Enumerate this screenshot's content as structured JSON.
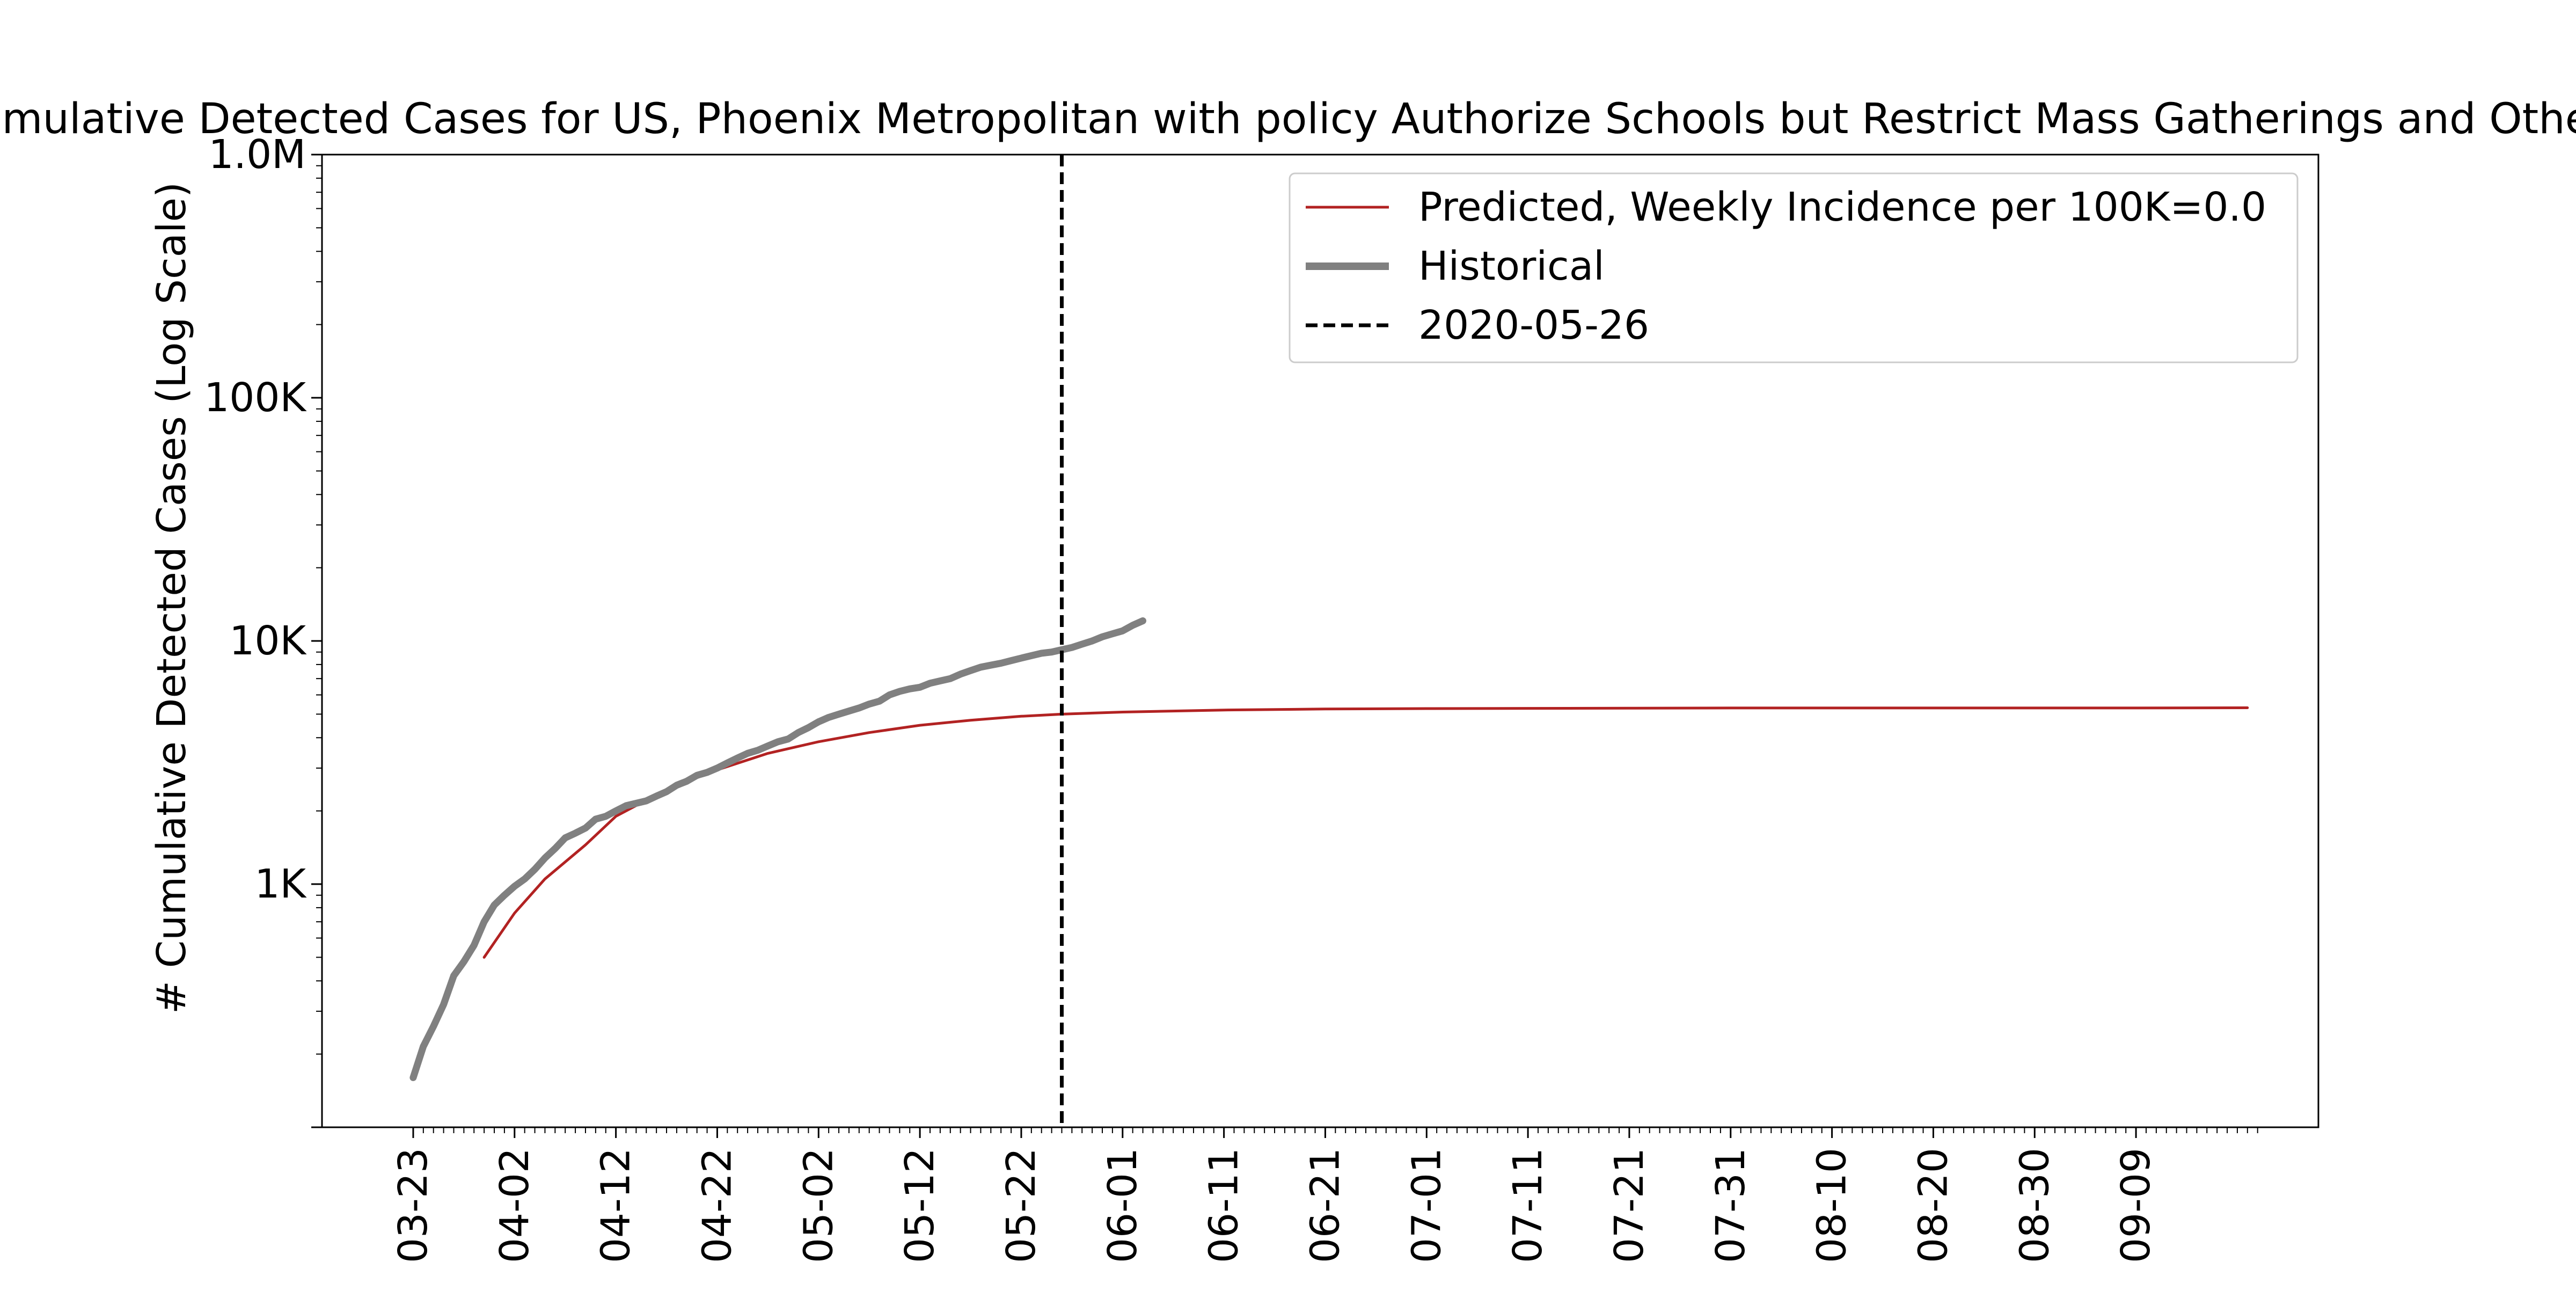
{
  "chart_data": {
    "type": "line",
    "title": "Cumulative Detected Cases for US, Phoenix Metropolitan with policy Authorize Schools but Restrict Mass Gatherings and Others",
    "xlabel": "",
    "ylabel": "# Cumulative Detected Cases (Log Scale)",
    "y_scale": "log",
    "ylim": [
      100,
      1000000
    ],
    "xlim": [
      "2020-03-14",
      "2020-09-27"
    ],
    "y_ticks": [
      {
        "value": 1000,
        "label": "1K"
      },
      {
        "value": 10000,
        "label": "10K"
      },
      {
        "value": 100000,
        "label": "100K"
      },
      {
        "value": 1000000,
        "label": "1.0M"
      }
    ],
    "x_tick_labels": [
      "03-23",
      "04-02",
      "04-12",
      "04-22",
      "05-02",
      "05-12",
      "05-22",
      "06-01",
      "06-11",
      "06-21",
      "07-01",
      "07-11",
      "07-21",
      "07-31",
      "08-10",
      "08-20",
      "08-30",
      "09-09"
    ],
    "x_tick_dates": [
      "2020-03-23",
      "2020-04-02",
      "2020-04-12",
      "2020-04-22",
      "2020-05-02",
      "2020-05-12",
      "2020-05-22",
      "2020-06-01",
      "2020-06-11",
      "2020-06-21",
      "2020-07-01",
      "2020-07-11",
      "2020-07-21",
      "2020-07-31",
      "2020-08-10",
      "2020-08-20",
      "2020-08-30",
      "2020-09-09"
    ],
    "minor_tick_range": [
      "2020-03-23",
      "2020-09-21"
    ],
    "grid": false,
    "legend": {
      "placement": "top-right"
    },
    "series": [
      {
        "name": "Predicted, Weekly Incidence per 100K=0.0",
        "color": "#b22222",
        "style": "solid",
        "points": [
          [
            "2020-03-30",
            500
          ],
          [
            "2020-04-02",
            760
          ],
          [
            "2020-04-05",
            1050
          ],
          [
            "2020-04-09",
            1450
          ],
          [
            "2020-04-12",
            1900
          ],
          [
            "2020-04-17",
            2450
          ],
          [
            "2020-04-22",
            2950
          ],
          [
            "2020-04-27",
            3450
          ],
          [
            "2020-05-02",
            3850
          ],
          [
            "2020-05-07",
            4200
          ],
          [
            "2020-05-12",
            4500
          ],
          [
            "2020-05-17",
            4720
          ],
          [
            "2020-05-22",
            4900
          ],
          [
            "2020-05-26",
            5000
          ],
          [
            "2020-06-01",
            5100
          ],
          [
            "2020-06-11",
            5200
          ],
          [
            "2020-06-21",
            5250
          ],
          [
            "2020-07-01",
            5270
          ],
          [
            "2020-07-11",
            5280
          ],
          [
            "2020-07-21",
            5290
          ],
          [
            "2020-07-31",
            5300
          ],
          [
            "2020-08-10",
            5300
          ],
          [
            "2020-08-20",
            5300
          ],
          [
            "2020-08-30",
            5300
          ],
          [
            "2020-09-09",
            5300
          ],
          [
            "2020-09-20",
            5310
          ]
        ]
      },
      {
        "name": "Historical",
        "color": "#808080",
        "style": "thick",
        "points": [
          [
            "2020-03-23",
            160
          ],
          [
            "2020-03-24",
            215
          ],
          [
            "2020-03-25",
            260
          ],
          [
            "2020-03-26",
            320
          ],
          [
            "2020-03-27",
            420
          ],
          [
            "2020-03-28",
            480
          ],
          [
            "2020-03-29",
            560
          ],
          [
            "2020-03-30",
            700
          ],
          [
            "2020-03-31",
            820
          ],
          [
            "2020-04-01",
            900
          ],
          [
            "2020-04-02",
            980
          ],
          [
            "2020-04-03",
            1050
          ],
          [
            "2020-04-04",
            1150
          ],
          [
            "2020-04-05",
            1280
          ],
          [
            "2020-04-06",
            1400
          ],
          [
            "2020-04-07",
            1550
          ],
          [
            "2020-04-08",
            1620
          ],
          [
            "2020-04-09",
            1700
          ],
          [
            "2020-04-10",
            1850
          ],
          [
            "2020-04-11",
            1900
          ],
          [
            "2020-04-12",
            2000
          ],
          [
            "2020-04-13",
            2100
          ],
          [
            "2020-04-14",
            2150
          ],
          [
            "2020-04-15",
            2200
          ],
          [
            "2020-04-16",
            2300
          ],
          [
            "2020-04-17",
            2400
          ],
          [
            "2020-04-18",
            2550
          ],
          [
            "2020-04-19",
            2650
          ],
          [
            "2020-04-20",
            2800
          ],
          [
            "2020-04-21",
            2880
          ],
          [
            "2020-04-22",
            3000
          ],
          [
            "2020-04-23",
            3150
          ],
          [
            "2020-04-24",
            3300
          ],
          [
            "2020-04-25",
            3450
          ],
          [
            "2020-04-26",
            3550
          ],
          [
            "2020-04-27",
            3700
          ],
          [
            "2020-04-28",
            3850
          ],
          [
            "2020-04-29",
            3950
          ],
          [
            "2020-04-30",
            4200
          ],
          [
            "2020-05-01",
            4400
          ],
          [
            "2020-05-02",
            4650
          ],
          [
            "2020-05-03",
            4850
          ],
          [
            "2020-05-04",
            5000
          ],
          [
            "2020-05-05",
            5150
          ],
          [
            "2020-05-06",
            5300
          ],
          [
            "2020-05-07",
            5500
          ],
          [
            "2020-05-08",
            5650
          ],
          [
            "2020-05-09",
            6000
          ],
          [
            "2020-05-10",
            6200
          ],
          [
            "2020-05-11",
            6350
          ],
          [
            "2020-05-12",
            6450
          ],
          [
            "2020-05-13",
            6700
          ],
          [
            "2020-05-14",
            6850
          ],
          [
            "2020-05-15",
            7000
          ],
          [
            "2020-05-16",
            7300
          ],
          [
            "2020-05-17",
            7550
          ],
          [
            "2020-05-18",
            7800
          ],
          [
            "2020-05-19",
            7950
          ],
          [
            "2020-05-20",
            8100
          ],
          [
            "2020-05-21",
            8300
          ],
          [
            "2020-05-22",
            8500
          ],
          [
            "2020-05-23",
            8700
          ],
          [
            "2020-05-24",
            8900
          ],
          [
            "2020-05-25",
            9000
          ],
          [
            "2020-05-26",
            9200
          ],
          [
            "2020-05-27",
            9400
          ],
          [
            "2020-05-28",
            9700
          ],
          [
            "2020-05-29",
            10000
          ],
          [
            "2020-05-30",
            10400
          ],
          [
            "2020-05-31",
            10700
          ],
          [
            "2020-06-01",
            11000
          ],
          [
            "2020-06-02",
            11600
          ],
          [
            "2020-06-03",
            12100
          ]
        ]
      },
      {
        "name": "2020-05-26",
        "color": "#000000",
        "style": "dashed",
        "vline_x": "2020-05-26"
      }
    ]
  }
}
